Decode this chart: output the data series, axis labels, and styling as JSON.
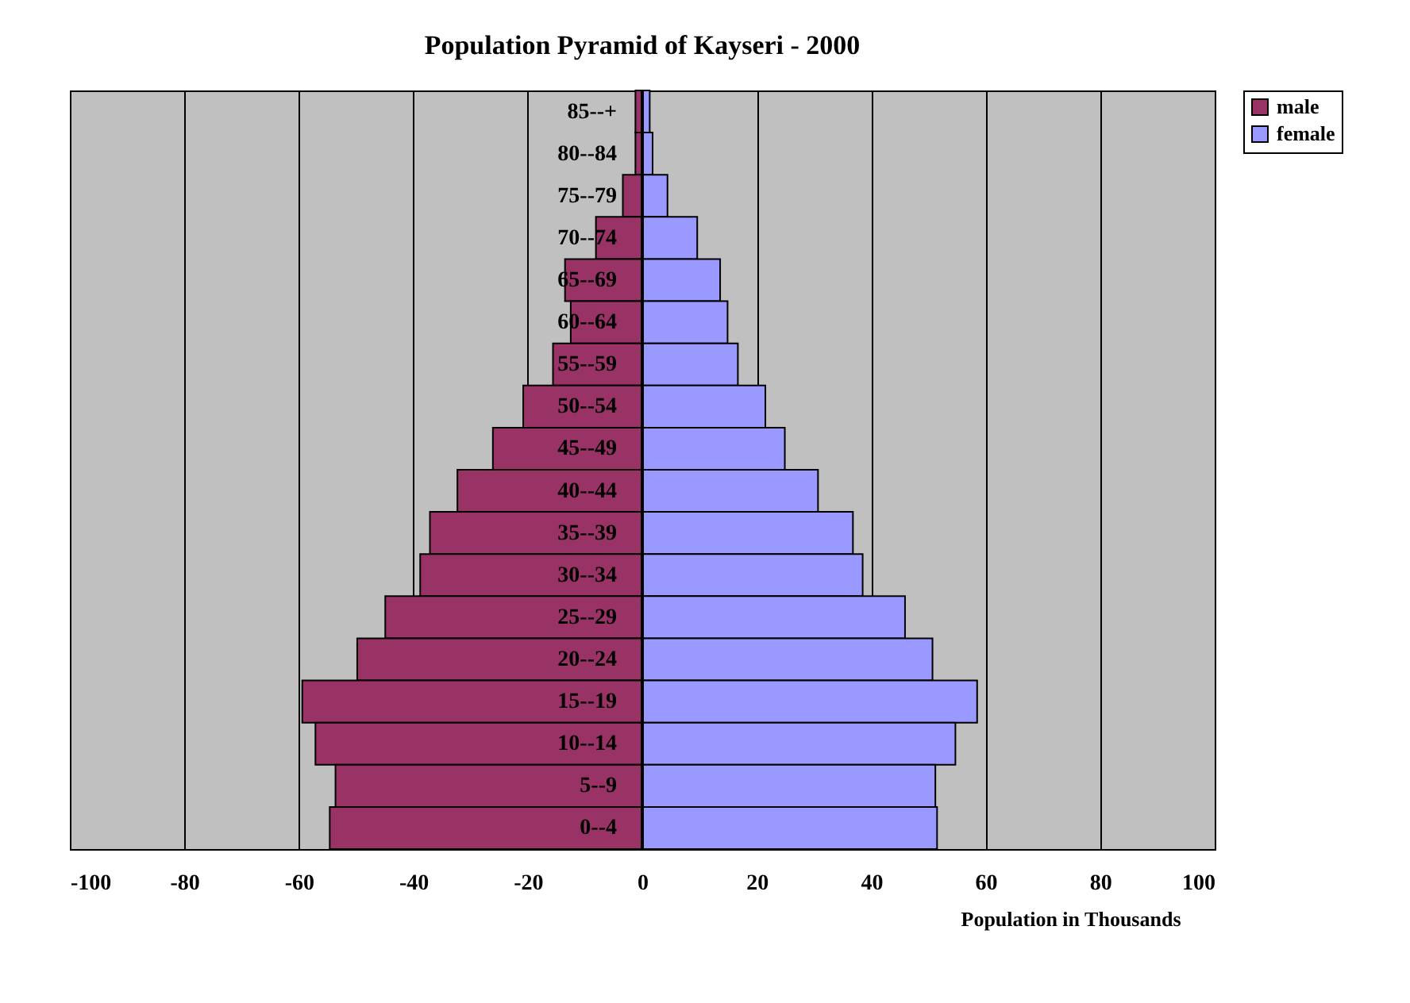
{
  "chart_data": {
    "type": "bar",
    "orientation": "horizontal",
    "title": "Population Pyramid of Kayseri - 2000",
    "xlabel": "Population in Thousands",
    "categories": [
      "85--+",
      "80--84",
      "75--79",
      "70--74",
      "65--69",
      "60--64",
      "55--59",
      "50--54",
      "45--49",
      "40--44",
      "35--39",
      "30--34",
      "25--29",
      "20--24",
      "15--19",
      "10--14",
      "5--9",
      "0--4"
    ],
    "series": [
      {
        "name": "male",
        "color": "#993366",
        "values": [
          -1.2,
          -1.2,
          -3.4,
          -8.1,
          -13.5,
          -12.5,
          -15.6,
          -20.8,
          -26.1,
          -32.3,
          -37.1,
          -38.8,
          -44.9,
          -49.8,
          -59.4,
          -57.1,
          -53.6,
          -54.6
        ]
      },
      {
        "name": "female",
        "color": "#9999ff",
        "values": [
          1.3,
          1.8,
          4.4,
          9.6,
          13.6,
          14.9,
          16.7,
          21.5,
          24.9,
          30.7,
          36.8,
          38.5,
          45.9,
          50.7,
          58.5,
          54.7,
          51.2,
          51.5
        ]
      }
    ],
    "stacked": true,
    "xlim": [
      -100,
      100
    ],
    "xticks": [
      -100,
      -80,
      -60,
      -40,
      -20,
      0,
      20,
      40,
      60,
      80,
      100
    ],
    "grid": "x",
    "legend": "right"
  }
}
